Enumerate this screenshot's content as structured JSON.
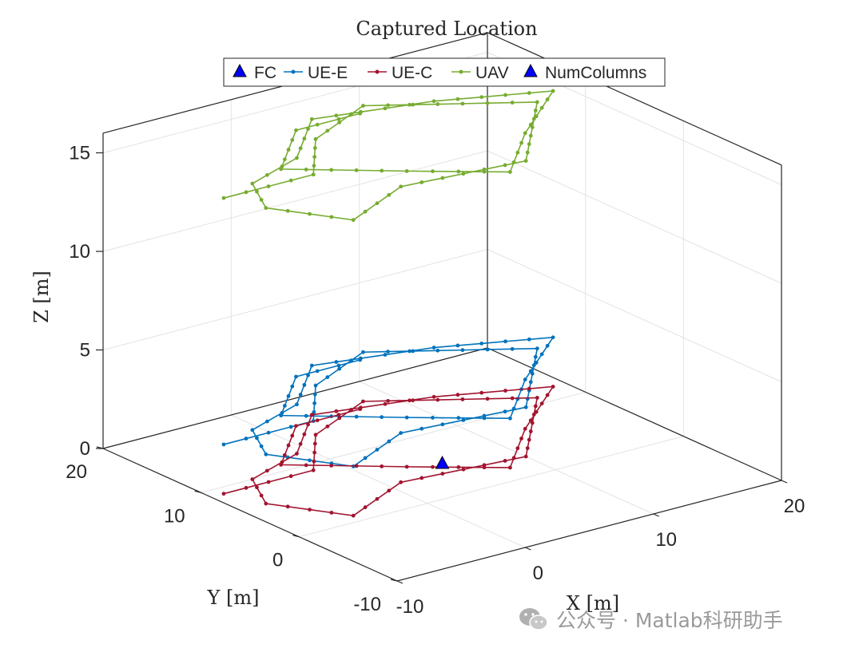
{
  "chart_data": {
    "type": "scatter3d",
    "title": "Captured Location",
    "xlabel": "X [m]",
    "ylabel": "Y [m]",
    "zlabel": "Z [m]",
    "xlim": [
      -10,
      20
    ],
    "ylim": [
      -10,
      20
    ],
    "zlim": [
      0,
      16
    ],
    "xticks": [
      "-10",
      "0",
      "10",
      "20"
    ],
    "yticks": [
      "-10",
      "0",
      "10",
      "20"
    ],
    "zticks": [
      "0",
      "5",
      "10",
      "15"
    ],
    "grid": true,
    "legend_position": "top",
    "legend": [
      {
        "label": "FC",
        "marker": "triangle",
        "color": "#0000ff"
      },
      {
        "label": "UE-E",
        "marker": "line-dot",
        "color": "#0072bd"
      },
      {
        "label": "UE-C",
        "marker": "line-dot",
        "color": "#a2142f"
      },
      {
        "label": "UAV",
        "marker": "line-dot",
        "color": "#77ac30"
      },
      {
        "label": "NumColumns",
        "marker": "triangle",
        "color": "#0000ff"
      }
    ],
    "fc_point": {
      "x": 5,
      "y": 5,
      "z": 0
    },
    "path_xy": [
      [
        7,
        16
      ],
      [
        2,
        16
      ],
      [
        -3,
        11
      ],
      [
        3,
        6
      ],
      [
        8,
        2
      ],
      [
        13,
        7
      ],
      [
        19,
        12
      ],
      [
        12,
        15
      ],
      [
        4,
        17
      ],
      [
        -1,
        12
      ],
      [
        -6,
        10
      ],
      [
        -8,
        6
      ],
      [
        -5,
        1
      ],
      [
        1,
        4
      ],
      [
        10,
        3
      ],
      [
        17,
        11
      ],
      [
        8,
        17
      ],
      [
        2,
        14
      ],
      [
        -2,
        9
      ],
      [
        -9,
        9
      ]
    ],
    "series": [
      {
        "name": "UE-E",
        "z": 2.5,
        "color": "#0072bd"
      },
      {
        "name": "UE-C",
        "z": 0,
        "color": "#a2142f"
      },
      {
        "name": "UAV",
        "z": 15,
        "color": "#77ac30"
      }
    ]
  },
  "watermark": {
    "text": "公众号 · Matlab科研助手",
    "icon": "wechat-icon"
  }
}
